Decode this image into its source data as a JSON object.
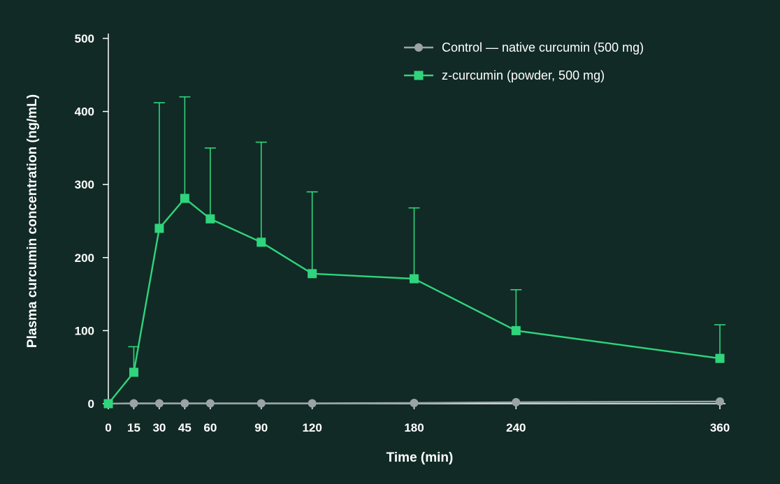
{
  "chart_data": {
    "type": "line",
    "title": "",
    "xlabel": "Time (min)",
    "ylabel": "Plasma curcumin concentration (ng/mL)",
    "x": [
      0,
      15,
      30,
      45,
      60,
      90,
      120,
      180,
      240,
      360
    ],
    "xlim": [
      0,
      360
    ],
    "ylim": [
      0,
      500
    ],
    "yticks": [
      0,
      100,
      200,
      300,
      400,
      500
    ],
    "grid": false,
    "legend_position": "top-right",
    "series": [
      {
        "name": "Control — native curcumin (500 mg)",
        "marker": "circle",
        "color": "#9ba3a6",
        "values": [
          0,
          0.5,
          0.5,
          0.5,
          0.5,
          0.5,
          0.5,
          1,
          2,
          3
        ]
      },
      {
        "name": "z-curcumin (powder, 500 mg)",
        "marker": "square",
        "color": "#2fd47c",
        "values": [
          0,
          43,
          240,
          281,
          253,
          221,
          178,
          171,
          100,
          62
        ],
        "error_upper": [
          0,
          78,
          412,
          420,
          350,
          358,
          290,
          268,
          156,
          108
        ]
      }
    ]
  }
}
